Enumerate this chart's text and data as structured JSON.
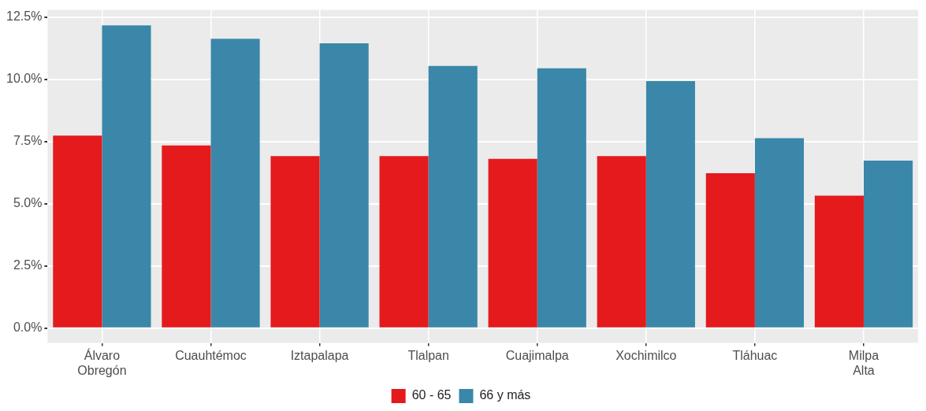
{
  "chart_data": {
    "type": "bar",
    "categories": [
      "Álvaro Obregón",
      "Cuauhtémoc",
      "Iztapalapa",
      "Tlalpan",
      "Cuajimalpa",
      "Xochimilco",
      "Tláhuac",
      "Milpa Alta"
    ],
    "series": [
      {
        "name": "60 - 65",
        "color": "#e41a1c",
        "values": [
          7.74,
          7.35,
          6.92,
          6.92,
          6.81,
          6.92,
          6.23,
          5.33
        ]
      },
      {
        "name": "66 y más",
        "color": "#3a87a9",
        "values": [
          12.18,
          11.64,
          11.46,
          10.55,
          10.45,
          9.94,
          7.64,
          6.74
        ]
      }
    ],
    "ylim": [
      -0.6,
      12.8
    ],
    "yticks": [
      {
        "value": 0,
        "label": "0.0%"
      },
      {
        "value": 2.5,
        "label": "2.5%"
      },
      {
        "value": 5,
        "label": "5.0%"
      },
      {
        "value": 7.5,
        "label": "7.5%"
      },
      {
        "value": 10,
        "label": "10.0%"
      },
      {
        "value": 12.5,
        "label": "12.5%"
      }
    ],
    "grid": true,
    "legend": "bottom"
  }
}
